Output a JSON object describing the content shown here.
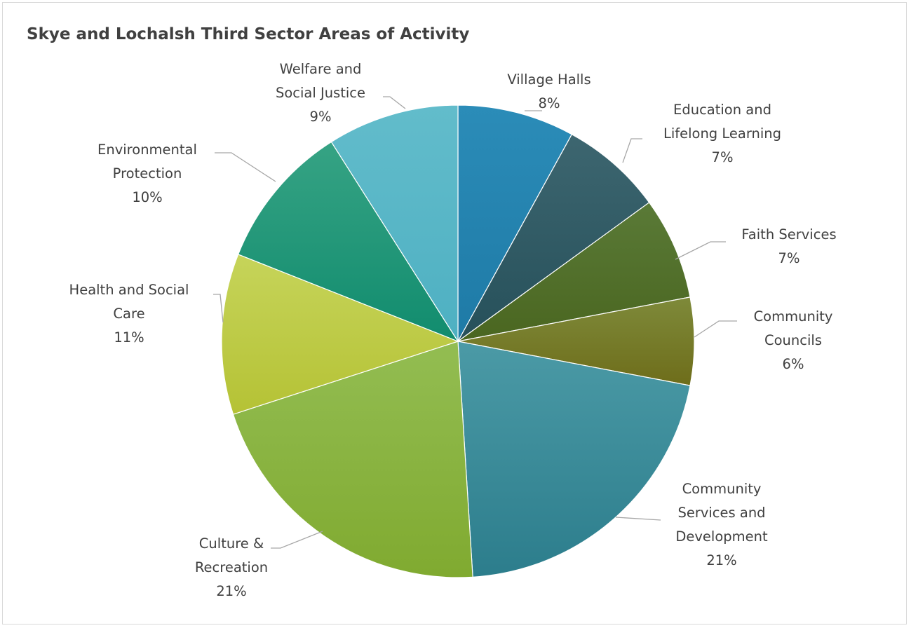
{
  "chart_data": {
    "type": "pie",
    "title": "Skye and Lochalsh Third Sector Areas of Activity",
    "slices": [
      {
        "label": [
          "Village Halls"
        ],
        "pct": "8%",
        "value": 8,
        "color": "#2b8cb8",
        "color_dark": "#1e7aa6"
      },
      {
        "label": [
          "Education and",
          "Lifelong Learning"
        ],
        "pct": "7%",
        "value": 7,
        "color": "#3d6670",
        "color_dark": "#26505a"
      },
      {
        "label": [
          "Faith Services"
        ],
        "pct": "7%",
        "value": 7,
        "color": "#5a7a37",
        "color_dark": "#4a6620"
      },
      {
        "label": [
          "Community",
          "Councils"
        ],
        "pct": "6%",
        "value": 6,
        "color": "#7e8a3a",
        "color_dark": "#6e6d1a"
      },
      {
        "label": [
          "Community",
          "Services and",
          "Development"
        ],
        "pct": "21%",
        "value": 21,
        "color": "#4b9aa6",
        "color_dark": "#2c7d8c"
      },
      {
        "label": [
          "Culture &",
          "Recreation"
        ],
        "pct": "21%",
        "value": 21,
        "color": "#93bd52",
        "color_dark": "#80aa30"
      },
      {
        "label": [
          "Health and Social",
          "Care"
        ],
        "pct": "11%",
        "value": 11,
        "color": "#c6d45a",
        "color_dark": "#b5c235"
      },
      {
        "label": [
          "Environmental",
          "Protection"
        ],
        "pct": "10%",
        "value": 10,
        "color": "#36a384",
        "color_dark": "#118c6e"
      },
      {
        "label": [
          "Welfare and",
          "Social Justice"
        ],
        "pct": "9%",
        "value": 9,
        "color": "#62bccb",
        "color_dark": "#4eb0c2"
      }
    ]
  }
}
